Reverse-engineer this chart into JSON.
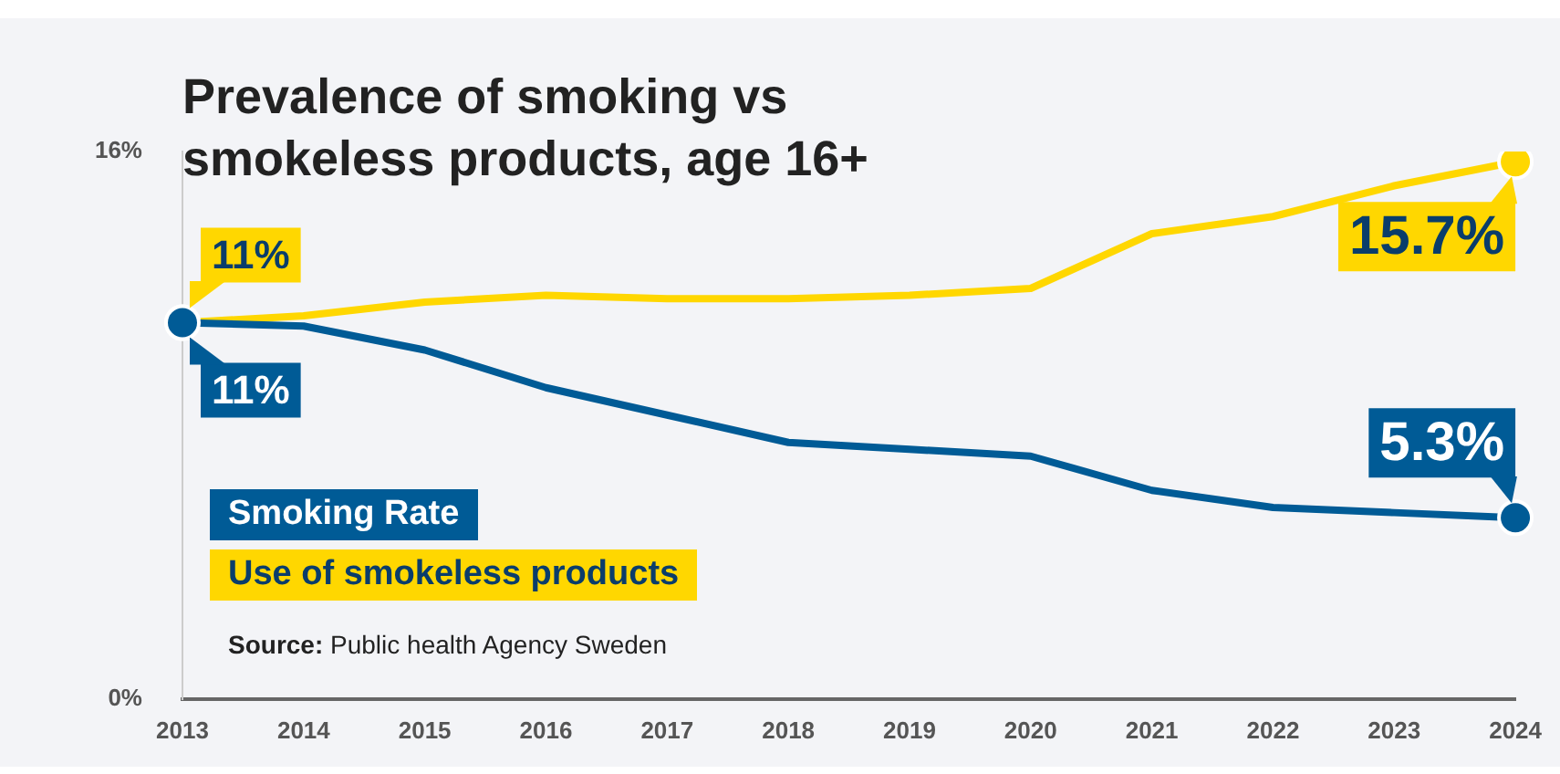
{
  "chart_data": {
    "type": "line",
    "title": "Prevalence of smoking vs smokeless products, age 16+",
    "categories": [
      "2013",
      "2014",
      "2015",
      "2016",
      "2017",
      "2018",
      "2019",
      "2020",
      "2021",
      "2022",
      "2023",
      "2024"
    ],
    "series": [
      {
        "name": "Smoking Rate",
        "color": "#005b96",
        "values": [
          11,
          10.9,
          10.2,
          9.1,
          8.3,
          7.5,
          7.3,
          7.1,
          6.1,
          5.6,
          5.45,
          5.3
        ],
        "value_labels": [
          "11%",
          null,
          null,
          null,
          null,
          null,
          null,
          null,
          null,
          null,
          null,
          "5.3%"
        ]
      },
      {
        "name": "Use of smokeless products",
        "color": "#ffd700",
        "values": [
          11,
          11.2,
          11.6,
          11.8,
          11.7,
          11.7,
          11.8,
          12.0,
          13.6,
          14.1,
          15.0,
          15.7
        ],
        "value_labels": [
          "11%",
          null,
          null,
          null,
          null,
          null,
          null,
          null,
          null,
          null,
          null,
          "15.7%"
        ]
      }
    ],
    "ylim": [
      0,
      16
    ],
    "yticks": [
      {
        "value": 0,
        "label": "0%"
      },
      {
        "value": 16,
        "label": "16%"
      }
    ],
    "grid": false,
    "legend": "left",
    "line_style": "solid",
    "annotations": [
      "Source: Public health Agency Sweden"
    ]
  }
}
